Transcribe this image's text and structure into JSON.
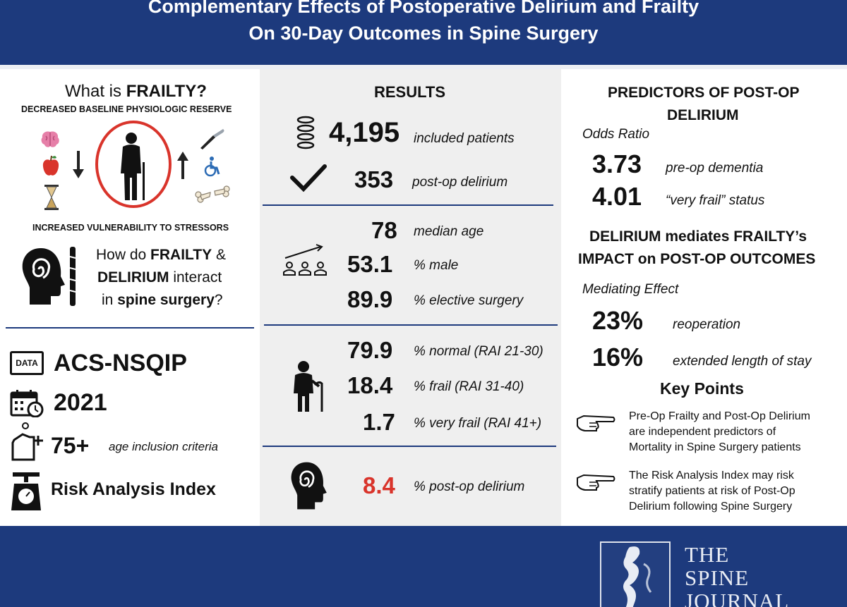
{
  "header": {
    "title_line1": "Complementary Effects of Postoperative Delirium and Frailty",
    "title_line2": "On 30-Day Outcomes in Spine Surgery"
  },
  "left": {
    "what_is": "What is ",
    "frailty_q": "FRAILTY?",
    "baseline": "DECREASED BASELINE PHYSIOLOGIC RESERVE",
    "vulnerability": "INCREASED VULNERABILITY TO STRESSORS",
    "q_l1a": "How do ",
    "q_l1b": "FRAILTY",
    "q_l1c": " &",
    "q_l2a": "DELIRIUM",
    "q_l2b": " interact",
    "q_l3a": "in ",
    "q_l3b": "spine surgery",
    "q_l3c": "?",
    "data_tag": "DATA",
    "database": "ACS-NSQIP",
    "year": "2021",
    "age_value": "75+",
    "age_label": "age inclusion criteria",
    "index": "Risk Analysis Index"
  },
  "results": {
    "heading": "RESULTS",
    "patients_value": "4,195",
    "patients_label": "included patients",
    "delirium_value": "353",
    "delirium_label": "post-op delirium",
    "age_value": "78",
    "age_label": "median age",
    "male_value": "53.1",
    "male_label": "% male",
    "elective_value": "89.9",
    "elective_label": "% elective surgery",
    "normal_value": "79.9",
    "normal_label": "% normal (RAI 21-30)",
    "frail_value": "18.4",
    "frail_label": "% frail (RAI 31-40)",
    "veryfrail_value": "1.7",
    "veryfrail_label": "% very frail (RAI 41+)",
    "rate_value": "8.4",
    "rate_label": "% post-op delirium"
  },
  "right": {
    "predictors_l1": "PREDICTORS OF POST-OP",
    "predictors_l2": "DELIRIUM",
    "odds_label": "Odds Ratio",
    "or1_value": "3.73",
    "or1_label": "pre-op dementia",
    "or2_value": "4.01",
    "or2_label": "“very frail” status",
    "mediates_l1": "DELIRIUM mediates FRAILTY’s",
    "mediates_l2": "IMPACT on POST-OP OUTCOMES",
    "mediating_label": "Mediating Effect",
    "me1_value": "23%",
    "me1_label": "reoperation",
    "me2_value": "16%",
    "me2_label": "extended length of stay",
    "key_points": "Key Points",
    "kp1_l1": "Pre-Op Frailty and Post-Op Delirium",
    "kp1_l2": "are independent predictors of",
    "kp1_l3": "Mortality in Spine Surgery patients",
    "kp2_l1": "The Risk Analysis Index may risk",
    "kp2_l2": "stratify patients at risk of Post-Op",
    "kp2_l3": "Delirium following Spine Surgery"
  },
  "footer": {
    "journal_l1": "THE",
    "journal_l2": "SPINE",
    "journal_l3": "JOURNAL"
  },
  "colors": {
    "navy": "#1d3a7d",
    "accent_red": "#d9342b",
    "panel_gray": "#efefef"
  }
}
